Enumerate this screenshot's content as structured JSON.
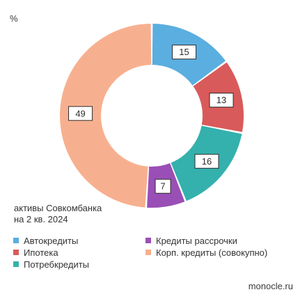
{
  "unit_label": "%",
  "caption": [
    "активы Совкомбанка",
    "на 2 кв. 2024"
  ],
  "source": "monocle.ru",
  "chart_data": {
    "type": "pie",
    "donut": true,
    "unit": "%",
    "categories": [
      "Автокредиты",
      "Ипотека",
      "Потребкредиты",
      "Кредиты рассрочки",
      "Корп. кредиты (совокупно)"
    ],
    "values": [
      15,
      13,
      16,
      7,
      49
    ],
    "data_labels": [
      "15",
      "13",
      "16",
      "7",
      "49"
    ],
    "colors": [
      "#5aaee0",
      "#d95a5a",
      "#34b1ad",
      "#9a4fb6",
      "#f7b08f"
    ],
    "legend": {
      "placement": "bottom",
      "items": [
        {
          "label": "Автокредиты",
          "color": "#5aaee0"
        },
        {
          "label": "Ипотека",
          "color": "#d95a5a"
        },
        {
          "label": "Потребкредиты",
          "color": "#34b1ad"
        },
        {
          "label": "Кредиты рассрочки",
          "color": "#9a4fb6"
        },
        {
          "label": "Корп. кредиты (совокупно)",
          "color": "#f7b08f"
        }
      ]
    }
  }
}
